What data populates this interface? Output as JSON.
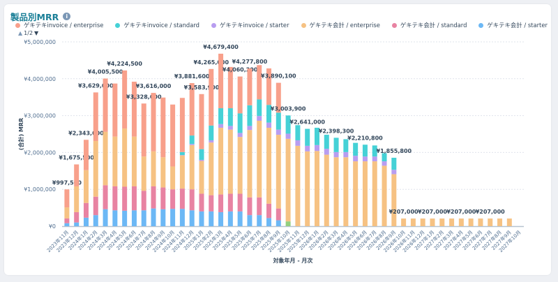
{
  "header": {
    "title": "製品別MRR",
    "info_icon": "info-icon"
  },
  "pager": {
    "text": "1/2",
    "up_icon": "triangle-up-icon",
    "down_icon": "triangle-down-icon"
  },
  "chart_data": {
    "type": "bar",
    "stacked": true,
    "title": "製品別MRR",
    "xlabel": "対象年月 - 月次",
    "ylabel": "(合計) MRR",
    "ylim": [
      0,
      5000000
    ],
    "yticks": [
      "¥0",
      "¥1,000,000",
      "¥2,000,000",
      "¥3,000,000",
      "¥4,000,000",
      "¥5,000,000"
    ],
    "grid": true,
    "legend_position": "top-left",
    "categories": [
      "2023年11月",
      "2023年12月",
      "2024年1月",
      "2024年2月",
      "2024年3月",
      "2024年4月",
      "2024年5月",
      "2024年6月",
      "2024年7月",
      "2024年8月",
      "2024年9月",
      "2024年10月",
      "2024年11月",
      "2024年12月",
      "2025年1月",
      "2025年2月",
      "2025年3月",
      "2025年4月",
      "2025年5月",
      "2025年6月",
      "2025年7月",
      "2025年8月",
      "2025年9月",
      "2025年10月",
      "2025年11月",
      "2025年12月",
      "2026年1月",
      "2026年2月",
      "2026年3月",
      "2026年4月",
      "2026年5月",
      "2026年6月",
      "2026年7月",
      "2026年8月",
      "2026年9月",
      "2026年10月",
      "2026年11月",
      "2026年12月",
      "2027年1月",
      "2027年2月",
      "2027年3月",
      "2027年4月",
      "2027年5月",
      "2027年6月",
      "2027年7月",
      "2027年8月",
      "2027年9月",
      "2027年10月"
    ],
    "series": [
      {
        "color": "#93cf7e",
        "in_legend": false,
        "values": [
          0,
          0,
          0,
          0,
          0,
          0,
          0,
          0,
          0,
          0,
          0,
          0,
          0,
          0,
          0,
          0,
          0,
          0,
          0,
          0,
          0,
          0,
          0,
          130000,
          0,
          0,
          0,
          0,
          0,
          0,
          0,
          0,
          0,
          0,
          0,
          0,
          0,
          0,
          0,
          0,
          0,
          0,
          0,
          0,
          0,
          0,
          0,
          0
        ]
      },
      {
        "name": "ゲキテキ会計 / starter",
        "color": "#6cb8f5",
        "values": [
          80000,
          100000,
          230000,
          300000,
          460000,
          430000,
          420000,
          430000,
          430000,
          480000,
          460000,
          470000,
          470000,
          430000,
          400000,
          400000,
          380000,
          400000,
          400000,
          300000,
          300000,
          220000,
          160000,
          0,
          0,
          0,
          0,
          0,
          0,
          0,
          0,
          0,
          0,
          0,
          0,
          0,
          0,
          0,
          0,
          0,
          0,
          0,
          0,
          0,
          0,
          0,
          0,
          0
        ]
      },
      {
        "name": "ゲキテキ会計 / standard",
        "color": "#e883a2",
        "values": [
          130000,
          280000,
          400000,
          500000,
          650000,
          650000,
          650000,
          650000,
          530000,
          600000,
          590000,
          530000,
          550000,
          570000,
          480000,
          440000,
          480000,
          480000,
          480000,
          480000,
          480000,
          390000,
          320000,
          0,
          0,
          0,
          0,
          0,
          0,
          0,
          0,
          0,
          0,
          0,
          0,
          0,
          0,
          0,
          0,
          0,
          0,
          0,
          0,
          0,
          0,
          0,
          0,
          0
        ]
      },
      {
        "name": "ゲキテキ会計 / enterprise",
        "color": "#f6c283",
        "values": [
          300000,
          700000,
          890000,
          1510000,
          1450000,
          1350000,
          1580000,
          1350000,
          930000,
          950000,
          820000,
          620000,
          900000,
          1200000,
          890000,
          1430000,
          1810000,
          1740000,
          1540000,
          1830000,
          2080000,
          2060000,
          2000000,
          2240000,
          2180000,
          2030000,
          2040000,
          1940000,
          1870000,
          1870000,
          1760000,
          1760000,
          1760000,
          1640000,
          1410000,
          207000,
          207000,
          207000,
          207000,
          207000,
          207000,
          207000,
          207000,
          207000,
          207000,
          207000,
          207000,
          0
        ]
      },
      {
        "name": "ゲキテキinvoice / starter",
        "color": "#b89df0",
        "values": [
          0,
          0,
          0,
          0,
          0,
          0,
          0,
          0,
          0,
          0,
          0,
          0,
          10000,
          30000,
          30000,
          60000,
          100000,
          100000,
          110000,
          110000,
          130000,
          140000,
          140000,
          140000,
          150000,
          150000,
          160000,
          160000,
          140000,
          140000,
          150000,
          130000,
          130000,
          120000,
          120000,
          0,
          0,
          0,
          0,
          0,
          0,
          0,
          0,
          0,
          0,
          0,
          0,
          0
        ]
      },
      {
        "name": "ゲキテキinvoice / standard",
        "color": "#45d1d6",
        "values": [
          0,
          0,
          0,
          0,
          0,
          0,
          0,
          0,
          0,
          0,
          0,
          0,
          80000,
          230000,
          290000,
          400000,
          430000,
          480000,
          530000,
          560000,
          450000,
          480000,
          460000,
          493900,
          410000,
          461000,
          470000,
          380000,
          388300,
          350000,
          350000,
          320800,
          300000,
          220000,
          325800,
          0,
          0,
          0,
          0,
          0,
          0,
          0,
          0,
          0,
          0,
          0,
          0,
          0
        ]
      },
      {
        "name": "ゲキテキinvoice / enterprise",
        "color": "#f8a08b",
        "values": [
          487500,
          595500,
          823000,
          1319000,
          1445500,
          1440000,
          1574500,
          1490000,
          1438000,
          1586000,
          1620000,
          1680000,
          1470000,
          1421600,
          1493900,
          1535000,
          1479400,
          1120000,
          1000200,
          997800,
          930000,
          990000,
          810100,
          0,
          0,
          0,
          0,
          0,
          0,
          0,
          0,
          0,
          0,
          0,
          0,
          0,
          0,
          0,
          0,
          0,
          0,
          0,
          0,
          0,
          0,
          0,
          0,
          0
        ]
      }
    ],
    "data_labels": [
      "¥997,500",
      "¥1,675,500",
      "¥2,343,000",
      "¥3,629,000",
      "¥4,005,500",
      "",
      "¥4,224,500",
      "",
      "¥3,328,000",
      "¥3,616,000",
      "",
      "",
      "",
      "¥3,881,600",
      "¥3,583,900",
      "¥4,265,000",
      "¥4,679,400",
      "",
      "¥4,060,200",
      "¥4,277,800",
      "",
      "",
      "¥3,890,100",
      "¥3,003,900",
      "",
      "¥2,641,000",
      "",
      "",
      "¥2,398,300",
      "",
      "",
      "¥2,210,800",
      "",
      "",
      "¥1,855,800",
      "¥207,000",
      "",
      "",
      "¥207,000",
      "",
      "",
      "¥207,000",
      "",
      "",
      "¥207,000",
      "",
      "",
      ""
    ]
  }
}
